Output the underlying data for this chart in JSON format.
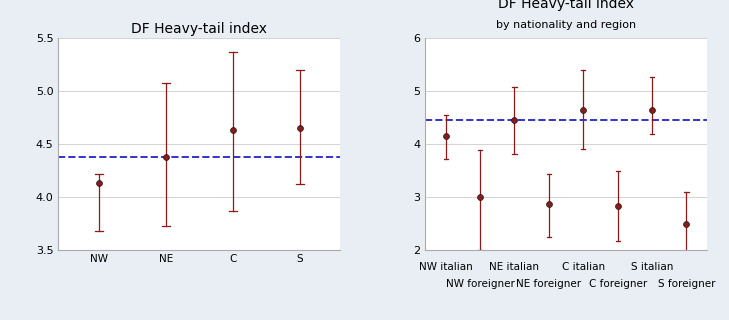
{
  "panel1": {
    "title": "DF Heavy-tail index",
    "subtitle": null,
    "categories": [
      "NW",
      "NE",
      "C",
      "S"
    ],
    "centers": [
      4.13,
      4.38,
      4.63,
      4.65
    ],
    "ci_low": [
      3.68,
      3.72,
      3.87,
      4.12
    ],
    "ci_high": [
      4.22,
      5.08,
      5.37,
      5.2
    ],
    "hline": 4.38,
    "ylim": [
      3.5,
      5.5
    ],
    "yticks": [
      3.5,
      4.0,
      4.5,
      5.0,
      5.5
    ]
  },
  "panel2": {
    "title": "DF Heavy-tail index",
    "subtitle": "by nationality and region",
    "categories": [
      "NW italian",
      "NW foreigner",
      "NE italian",
      "NE foreigner",
      "C italian",
      "C foreigner",
      "S italian",
      "S foreigner"
    ],
    "centers": [
      4.16,
      2.99,
      4.45,
      2.86,
      4.65,
      2.82,
      4.65,
      2.48
    ],
    "ci_low": [
      3.72,
      2.0,
      3.82,
      2.24,
      3.91,
      2.16,
      4.19,
      1.85
    ],
    "ci_high": [
      4.55,
      3.88,
      5.08,
      3.43,
      5.4,
      3.49,
      5.27,
      3.09
    ],
    "hline": 4.45,
    "ylim": [
      2.0,
      6.0
    ],
    "yticks": [
      2,
      3,
      4,
      5,
      6
    ]
  },
  "marker_color": "#8B1A1A",
  "line_color": "#8B1A1A",
  "hline_color": "#3333CC",
  "bg_color": "#E8EEF4",
  "plot_bg_color": "#FFFFFF",
  "title_fontsize": 10,
  "subtitle_fontsize": 8,
  "tick_fontsize": 8,
  "label_fontsize": 7.5
}
